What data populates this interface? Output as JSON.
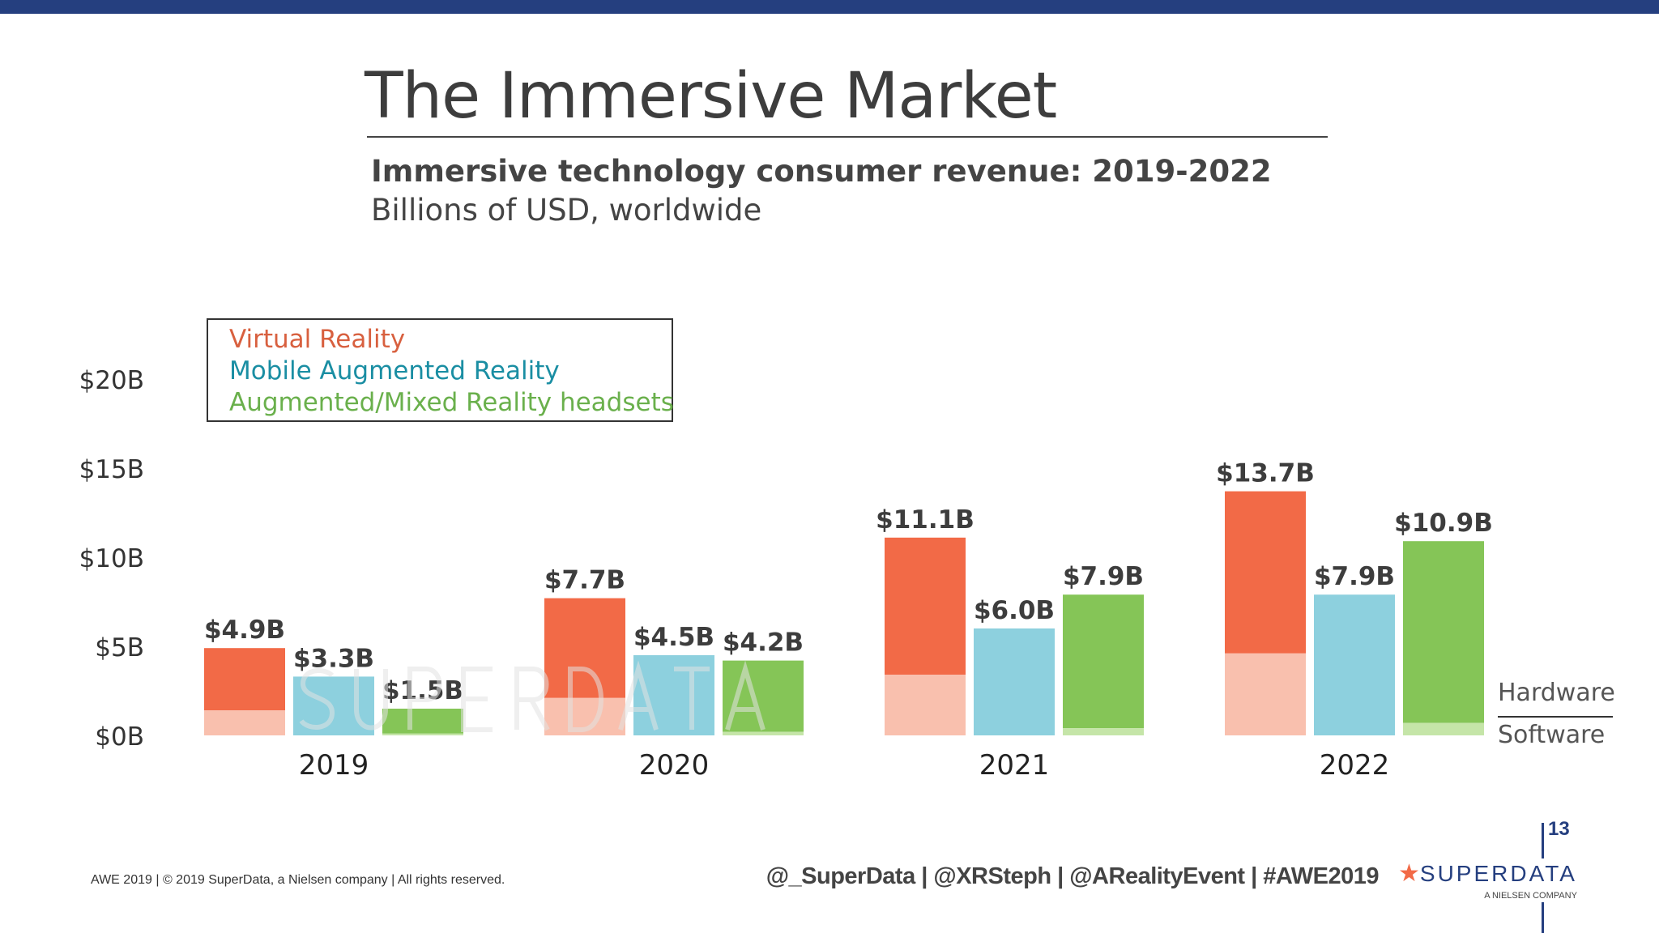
{
  "title": "The Immersive Market",
  "subtitle": "Immersive technology consumer revenue: 2019-2022",
  "subtitle2": "Billions of USD, worldwide",
  "watermark": "SUPERDATA",
  "chart_data": {
    "type": "bar",
    "stacked_parts": [
      "Hardware",
      "Software"
    ],
    "categories": [
      "2019",
      "2020",
      "2021",
      "2022"
    ],
    "ylim": [
      0,
      20
    ],
    "yticks": [
      "$0B",
      "$5B",
      "$10B",
      "$15B",
      "$20B"
    ],
    "ytick_values": [
      0,
      5,
      10,
      15,
      20
    ],
    "legend_position": "top-left",
    "series": [
      {
        "name": "Virtual Reality",
        "color": "#f26a47",
        "software_color": "#f9c0ae",
        "values": [
          4.9,
          7.7,
          11.1,
          13.7
        ],
        "software": [
          1.4,
          2.1,
          3.4,
          4.6
        ],
        "labels": [
          "$4.9B",
          "$7.7B",
          "$11.1B",
          "$13.7B"
        ]
      },
      {
        "name": "Mobile Augmented Reality",
        "color": "#8dd0de",
        "software_color": "#8dd0de",
        "values": [
          3.3,
          4.5,
          6.0,
          7.9
        ],
        "software": [
          3.3,
          4.5,
          6.0,
          7.9
        ],
        "labels": [
          "$3.3B",
          "$4.5B",
          "$6.0B",
          "$7.9B"
        ]
      },
      {
        "name": "Augmented/Mixed Reality headsets",
        "color": "#85c557",
        "software_color": "#c5e5a8",
        "values": [
          1.5,
          4.2,
          7.9,
          10.9
        ],
        "software": [
          0.1,
          0.2,
          0.4,
          0.7
        ],
        "labels": [
          "$1.5B",
          "$4.2B",
          "$7.9B",
          "$10.9B"
        ]
      }
    ],
    "legend_text_colors": [
      "#d8603f",
      "#1a8ea3",
      "#6ab04c"
    ],
    "part_labels": {
      "hardware": "Hardware",
      "software": "Software"
    }
  },
  "footer": {
    "left": "AWE 2019  |  © 2019 SuperData, a Nielsen company |  All rights reserved.",
    "handles": "@_SuperData  |  @XRSteph  |  @ARealityEvent  |  #AWE2019",
    "logo_name": "SUPERDATA",
    "logo_sub": "A NIELSEN COMPANY",
    "page_number": "13"
  }
}
